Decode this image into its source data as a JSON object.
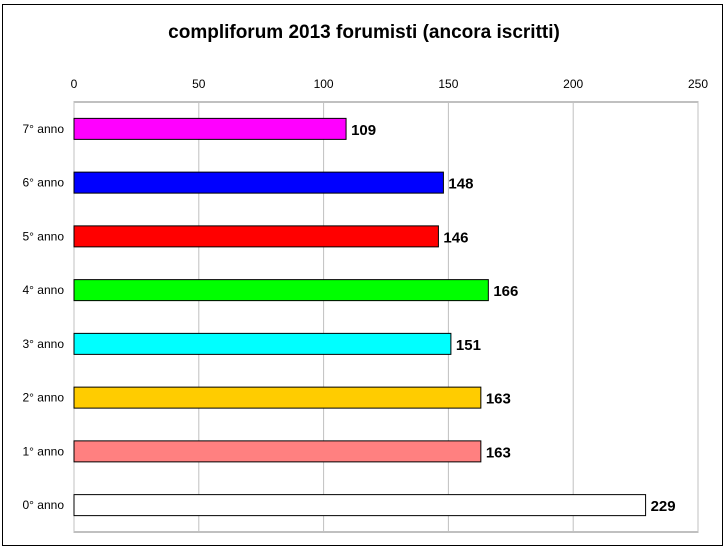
{
  "chart_data": {
    "type": "bar",
    "orientation": "horizontal",
    "title": "compliforum 2013 forumisti (ancora iscritti)",
    "xlabel": "",
    "ylabel": "",
    "xlim": [
      0,
      250
    ],
    "x_ticks": [
      "0",
      "50",
      "100",
      "150",
      "200",
      "250"
    ],
    "x_axis_position": "top",
    "grid": "vertical",
    "legend": "none",
    "categories": [
      "7° anno",
      "6° anno",
      "5° anno",
      "4° anno",
      "3° anno",
      "2° anno",
      "1° anno",
      "0° anno"
    ],
    "values": [
      109,
      148,
      146,
      166,
      151,
      163,
      163,
      229
    ],
    "data_labels": [
      "109",
      "148",
      "146",
      "166",
      "151",
      "163",
      "163",
      "229"
    ],
    "colors": [
      "#ff00ff",
      "#0000ff",
      "#ff0000",
      "#00ff00",
      "#00ffff",
      "#ffcc00",
      "#ff8080",
      "#ffffff"
    ]
  }
}
